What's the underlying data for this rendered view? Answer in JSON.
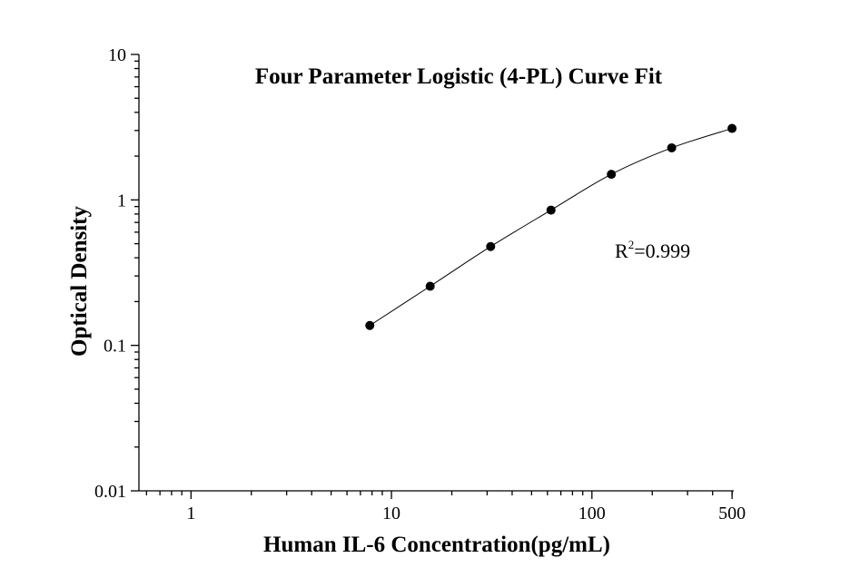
{
  "chart_data": {
    "type": "scatter",
    "title": "Four Parameter Logistic (4-PL) Curve Fit",
    "xlabel": "Human IL-6 Concentration(pg/mL)",
    "ylabel": "Optical Density",
    "x_scale": "log",
    "y_scale": "log",
    "xlim": [
      0.55,
      510
    ],
    "ylim": [
      0.01,
      10
    ],
    "x_ticks": [
      1,
      10,
      100,
      500
    ],
    "x_tick_labels": [
      "1",
      "10",
      "100",
      "500"
    ],
    "y_ticks": [
      0.01,
      0.1,
      1,
      10
    ],
    "y_tick_labels": [
      "0.01",
      "0.1",
      "1",
      "10"
    ],
    "grid": false,
    "series": [
      {
        "x": [
          7.8,
          15.6,
          31.25,
          62.5,
          125,
          250,
          500
        ],
        "y": [
          0.137,
          0.255,
          0.478,
          0.851,
          1.5,
          2.28,
          3.1
        ]
      }
    ],
    "fit": {
      "model": "4-PL",
      "r2_label": "R",
      "r2_sup": "2",
      "r2_value": "=0.999"
    }
  }
}
